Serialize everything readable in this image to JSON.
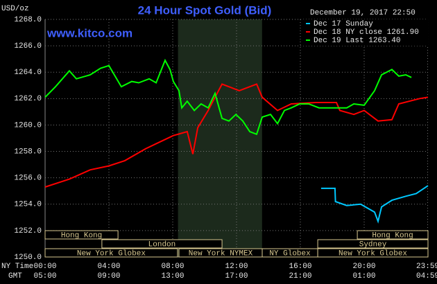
{
  "chart_data": {
    "type": "line",
    "title": "24 Hour Spot Gold (Bid)",
    "subtitle": "www.kitco.com",
    "y_label": "USD/oz",
    "timestamp": "December 19, 2017 22:50",
    "x_label": "NY Time",
    "x2_label": "GMT",
    "xlim": [
      0,
      24
    ],
    "ylim": [
      1250,
      1268
    ],
    "grid": true,
    "xticks": [
      {
        "value": 0,
        "label": "00:00"
      },
      {
        "value": 4,
        "label": "04:00"
      },
      {
        "value": 8,
        "label": "08:00"
      },
      {
        "value": 12,
        "label": "12:00"
      },
      {
        "value": 16,
        "label": "16:00"
      },
      {
        "value": 20,
        "label": "20:00"
      },
      {
        "value": 23.98,
        "label": "23:59"
      }
    ],
    "x2ticks": [
      {
        "value": 0,
        "label": "05:00"
      },
      {
        "value": 4,
        "label": "09:00"
      },
      {
        "value": 8,
        "label": "13:00"
      },
      {
        "value": 12,
        "label": "17:00"
      },
      {
        "value": 16,
        "label": "21:00"
      },
      {
        "value": 20,
        "label": "01:00"
      },
      {
        "value": 23.98,
        "label": "04:59"
      }
    ],
    "yticks": [
      {
        "value": 1250,
        "label": "1250.0"
      },
      {
        "value": 1252,
        "label": "1252.0"
      },
      {
        "value": 1254,
        "label": "1254.0"
      },
      {
        "value": 1256,
        "label": "1256.0"
      },
      {
        "value": 1258,
        "label": "1258.0"
      },
      {
        "value": 1260,
        "label": "1260.0"
      },
      {
        "value": 1262,
        "label": "1262.0"
      },
      {
        "value": 1264,
        "label": "1264.0"
      },
      {
        "value": 1266,
        "label": "1266.0"
      },
      {
        "value": 1268,
        "label": "1268.0"
      }
    ],
    "highlight_x": [
      8.33,
      13.6
    ],
    "sessions": [
      [
        {
          "label": "Hong Kong",
          "start": 0,
          "end": 4.57
        },
        {
          "label": "Hong Kong",
          "start": 19.57,
          "end": 24
        }
      ],
      [
        {
          "label": "London",
          "start": 3.56,
          "end": 11.09
        },
        {
          "label": "Sydney",
          "start": 17.09,
          "end": 24
        }
      ],
      [
        {
          "label": "New York Globex",
          "start": 0,
          "end": 8.3
        },
        {
          "label": "New York NYMEX",
          "start": 8.39,
          "end": 13.61
        },
        {
          "label": "NY Globex",
          "start": 13.61,
          "end": 17.09
        },
        {
          "label": "New York Globex",
          "start": 17.09,
          "end": 24
        }
      ]
    ],
    "series": [
      {
        "name": "Dec 17 Sunday",
        "color": "#00c8ff",
        "x": [
          17.3,
          18.17,
          18.2,
          18.91,
          19.78,
          20.65,
          20.87,
          21.09,
          21.74,
          22.61,
          23.26,
          24.0
        ],
        "values": [
          1255.2,
          1255.2,
          1254.2,
          1253.9,
          1254.0,
          1253.4,
          1252.7,
          1253.8,
          1254.3,
          1254.6,
          1254.8,
          1255.4
        ]
      },
      {
        "name": "Dec 18 NY close 1261.90",
        "color": "#ff0000",
        "x": [
          0,
          1.52,
          2.83,
          4.0,
          5.0,
          6.3,
          7.17,
          8.04,
          8.91,
          9.26,
          9.57,
          10.22,
          10.65,
          11.09,
          12.17,
          13.26,
          13.61,
          14.57,
          15.43,
          16.96,
          18.26,
          18.48,
          19.35,
          20.0,
          20.87,
          21.74,
          22.17,
          23.48,
          24.0
        ],
        "values": [
          1255.3,
          1255.9,
          1256.6,
          1256.9,
          1257.3,
          1258.2,
          1258.7,
          1259.2,
          1259.5,
          1257.8,
          1259.8,
          1261.1,
          1262.1,
          1263.1,
          1262.6,
          1263.1,
          1262.1,
          1261.1,
          1261.6,
          1261.7,
          1261.7,
          1261.1,
          1260.8,
          1261.1,
          1260.3,
          1260.4,
          1261.6,
          1262.0,
          1262.1
        ]
      },
      {
        "name": "Dec 19 Last 1263.40",
        "color": "#00ff00",
        "x": [
          0,
          0.65,
          1.52,
          1.96,
          2.83,
          3.48,
          4.0,
          4.78,
          5.43,
          5.87,
          6.52,
          6.96,
          7.52,
          7.83,
          8.04,
          8.39,
          8.57,
          8.91,
          9.35,
          9.78,
          10.22,
          10.65,
          11.09,
          11.52,
          11.96,
          12.39,
          12.83,
          13.26,
          13.61,
          14.13,
          14.57,
          15.0,
          15.43,
          15.96,
          16.52,
          17.17,
          18.04,
          18.91,
          19.35,
          20.0,
          20.65,
          21.09,
          21.74,
          22.17,
          22.61,
          22.96
        ],
        "values": [
          1262.1,
          1262.9,
          1264.1,
          1263.5,
          1263.8,
          1264.3,
          1264.5,
          1262.9,
          1263.3,
          1263.2,
          1263.5,
          1263.2,
          1264.9,
          1264.2,
          1263.3,
          1262.6,
          1261.3,
          1261.8,
          1261.1,
          1261.6,
          1261.3,
          1262.4,
          1260.5,
          1260.3,
          1260.8,
          1260.3,
          1259.5,
          1259.3,
          1260.6,
          1260.8,
          1260.1,
          1261.1,
          1261.3,
          1261.6,
          1261.6,
          1261.3,
          1261.3,
          1261.3,
          1261.6,
          1261.5,
          1262.6,
          1263.8,
          1264.2,
          1263.7,
          1263.8,
          1263.6
        ]
      }
    ]
  }
}
